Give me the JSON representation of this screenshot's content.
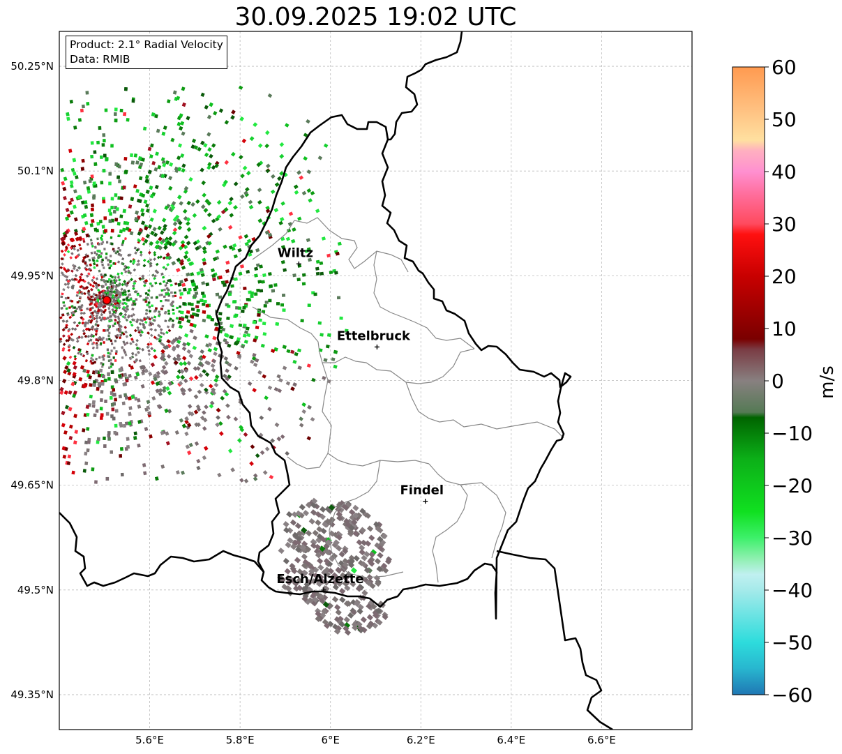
{
  "title": "30.09.2025 19:02 UTC",
  "info": {
    "product": "Product: 2.1° Radial Velocity",
    "source": "Data: RMIB"
  },
  "axes": {
    "lon_ticks": [
      "5.6°E",
      "5.8°E",
      "6°E",
      "6.2°E",
      "6.4°E",
      "6.6°E"
    ],
    "lat_ticks": [
      "50.25°N",
      "50.1°N",
      "49.95°N",
      "49.8°N",
      "49.65°N",
      "49.5°N",
      "49.35°N"
    ],
    "lon_values": [
      5.6,
      5.8,
      6.0,
      6.2,
      6.4,
      6.6
    ],
    "lat_values": [
      50.25,
      50.1,
      49.95,
      49.8,
      49.65,
      49.5,
      49.35
    ],
    "lon_range": [
      5.4,
      6.8
    ],
    "lat_range": [
      49.3,
      50.3
    ]
  },
  "cities": [
    {
      "name": "Wiltz",
      "lon": 5.93,
      "lat": 49.967
    },
    {
      "name": "Ettelbruck",
      "lon": 6.103,
      "lat": 49.848
    },
    {
      "name": "Findel",
      "lon": 6.21,
      "lat": 49.627
    },
    {
      "name": "Esch/Alzette",
      "lon": 5.985,
      "lat": 49.5
    }
  ],
  "radar_site": {
    "lon": 5.505,
    "lat": 49.915
  },
  "colorbar": {
    "unit": "m/s",
    "ticks": [
      "60",
      "50",
      "40",
      "30",
      "20",
      "10",
      "0",
      "−10",
      "−20",
      "−30",
      "−40",
      "−50",
      "−60"
    ],
    "min": -60,
    "max": 60,
    "stops": [
      {
        "v": -60,
        "c": "#1f77b4"
      },
      {
        "v": -55,
        "c": "#28b6cf"
      },
      {
        "v": -50,
        "c": "#2ddcdc"
      },
      {
        "v": -40,
        "c": "#a5eaea"
      },
      {
        "v": -37,
        "c": "#c0f0f0"
      },
      {
        "v": -34,
        "c": "#8ff0b0"
      },
      {
        "v": -30,
        "c": "#3df06a"
      },
      {
        "v": -25,
        "c": "#10e020"
      },
      {
        "v": -15,
        "c": "#0cb018"
      },
      {
        "v": -7,
        "c": "#006400"
      },
      {
        "v": -6,
        "c": "#557a55"
      },
      {
        "v": 0,
        "c": "#888080"
      },
      {
        "v": 6,
        "c": "#7a3c44"
      },
      {
        "v": 8,
        "c": "#7a0000"
      },
      {
        "v": 20,
        "c": "#c80000"
      },
      {
        "v": 28,
        "c": "#ff1010"
      },
      {
        "v": 30,
        "c": "#ff4a5e"
      },
      {
        "v": 36,
        "c": "#ff70a0"
      },
      {
        "v": 40,
        "c": "#ff90d0"
      },
      {
        "v": 44,
        "c": "#ffb0c0"
      },
      {
        "v": 46,
        "c": "#ffe0a0"
      },
      {
        "v": 52,
        "c": "#ffc080"
      },
      {
        "v": 60,
        "c": "#ff9a50"
      }
    ]
  },
  "colors": {
    "border": "#000000",
    "district": "#888888",
    "grid": "#bbbbbb",
    "outbound": "#9a0000",
    "inbound": "#0a8a0a",
    "zero": "#7d7878",
    "site": "#ff0000"
  }
}
